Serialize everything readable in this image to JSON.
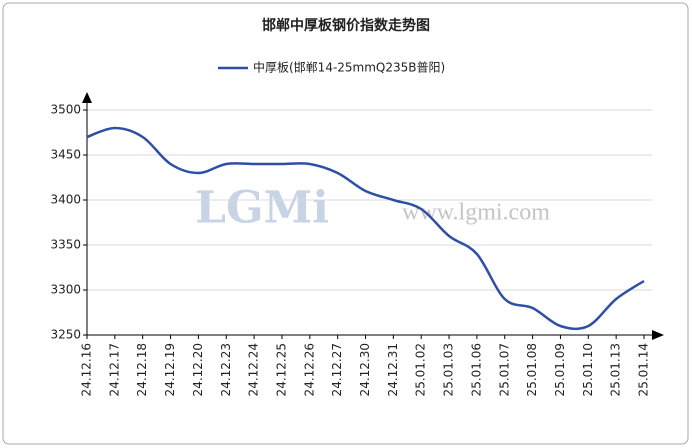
{
  "chart_data": {
    "type": "line",
    "title": "邯郸中厚板钢价指数走势图",
    "watermark": "LGMi",
    "watermark_url": "www.lgmi.com",
    "categories": [
      "24.12.16",
      "24.12.17",
      "24.12.18",
      "24.12.19",
      "24.12.20",
      "24.12.23",
      "24.12.24",
      "24.12.25",
      "24.12.26",
      "24.12.27",
      "24.12.30",
      "24.12.31",
      "25.01.02",
      "25.01.03",
      "25.01.06",
      "25.01.07",
      "25.01.08",
      "25.01.09",
      "25.01.10",
      "25.01.13",
      "25.01.14"
    ],
    "series": [
      {
        "name": "中厚板(邯郸14-25mmQ235B普阳)",
        "color": "#2e4fa8",
        "values": [
          3470,
          3480,
          3470,
          3440,
          3430,
          3440,
          3440,
          3440,
          3440,
          3430,
          3410,
          3400,
          3390,
          3360,
          3340,
          3290,
          3280,
          3260,
          3260,
          3290,
          3310
        ]
      }
    ],
    "ylim": [
      3250,
      3500
    ],
    "yticks": [
      3250,
      3300,
      3350,
      3400,
      3450,
      3500
    ],
    "grid": true
  }
}
